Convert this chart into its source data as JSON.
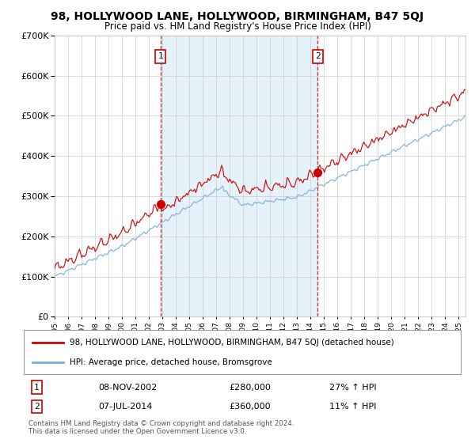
{
  "title": "98, HOLLYWOOD LANE, HOLLYWOOD, BIRMINGHAM, B47 5QJ",
  "subtitle": "Price paid vs. HM Land Registry's House Price Index (HPI)",
  "ylim": [
    0,
    700000
  ],
  "xlim_start": 1995.0,
  "xlim_end": 2025.5,
  "sale1_x": 2002.86,
  "sale1_y": 280000,
  "sale1_label": "1",
  "sale1_date": "08-NOV-2002",
  "sale1_price": "£280,000",
  "sale1_hpi": "27% ↑ HPI",
  "sale2_x": 2014.52,
  "sale2_y": 360000,
  "sale2_label": "2",
  "sale2_date": "07-JUL-2014",
  "sale2_price": "£360,000",
  "sale2_hpi": "11% ↑ HPI",
  "line_color_house": "#cc0000",
  "line_color_hpi": "#7aafd4",
  "fill_color": "#d0e8f5",
  "background_color": "#ffffff",
  "grid_color": "#cccccc",
  "legend_house": "98, HOLLYWOOD LANE, HOLLYWOOD, BIRMINGHAM, B47 5QJ (detached house)",
  "legend_hpi": "HPI: Average price, detached house, Bromsgrove",
  "footer": "Contains HM Land Registry data © Crown copyright and database right 2024.\nThis data is licensed under the Open Government Licence v3.0."
}
